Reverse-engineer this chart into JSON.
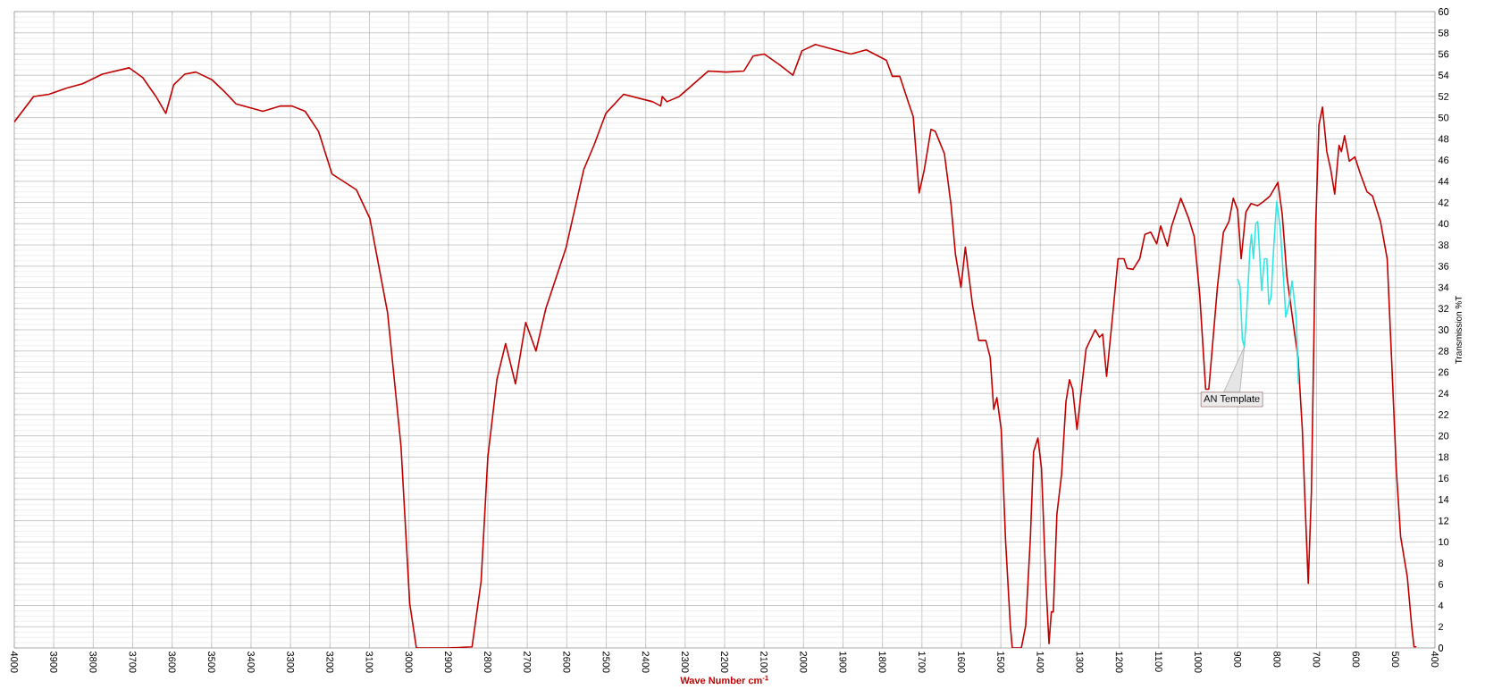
{
  "chart_data": {
    "type": "line",
    "xlabel": "Wave Number cm$^{-1}$",
    "ylabel": "Transmission %T",
    "xlim": [
      4000,
      400
    ],
    "ylim": [
      0,
      60
    ],
    "xticks": [
      4000,
      3900,
      3800,
      3700,
      3600,
      3500,
      3400,
      3300,
      3200,
      3100,
      3000,
      2900,
      2800,
      2700,
      2600,
      2500,
      2400,
      2300,
      2200,
      2100,
      2000,
      1900,
      1800,
      1700,
      1600,
      1500,
      1400,
      1300,
      1200,
      1100,
      1000,
      900,
      800,
      700,
      600,
      500,
      400
    ],
    "yticks": [
      0,
      2,
      4,
      6,
      8,
      10,
      12,
      14,
      16,
      18,
      20,
      22,
      24,
      26,
      28,
      30,
      32,
      34,
      36,
      38,
      40,
      42,
      44,
      46,
      48,
      50,
      52,
      54,
      56,
      58,
      60
    ],
    "grid": true,
    "series": [
      {
        "color": "#c00000",
        "x": [
          4000,
          3951,
          3912,
          3867,
          3827,
          3777,
          3709,
          3675,
          3641,
          3616,
          3596,
          3568,
          3540,
          3500,
          3466,
          3438,
          3370,
          3325,
          3297,
          3263,
          3229,
          3195,
          3133,
          3099,
          3054,
          3020,
          2998,
          2981,
          2940,
          2900,
          2840,
          2817,
          2800,
          2777,
          2755,
          2730,
          2704,
          2678,
          2653,
          2602,
          2557,
          2531,
          2501,
          2456,
          2382,
          2362,
          2358,
          2346,
          2315,
          2241,
          2196,
          2151,
          2128,
          2100,
          2061,
          2027,
          2004,
          1970,
          1920,
          1880,
          1841,
          1790,
          1775,
          1756,
          1733,
          1722,
          1707,
          1694,
          1677,
          1666,
          1643,
          1626,
          1615,
          1601,
          1590,
          1572,
          1556,
          1538,
          1527,
          1518,
          1510,
          1499,
          1488,
          1476,
          1471,
          1448,
          1437,
          1425,
          1417,
          1406,
          1397,
          1386,
          1378,
          1372,
          1367,
          1358,
          1346,
          1335,
          1326,
          1318,
          1307,
          1293,
          1284,
          1261,
          1250,
          1242,
          1232,
          1216,
          1203,
          1188,
          1180,
          1165,
          1148,
          1135,
          1120,
          1105,
          1095,
          1078,
          1067,
          1044,
          1024,
          1010,
          996,
          981,
          973,
          951,
          936,
          922,
          911,
          900,
          891,
          879,
          866,
          849,
          834,
          818,
          798,
          787,
          775,
          758,
          747,
          736,
          728,
          721,
          713,
          702,
          694,
          685,
          674,
          664,
          654,
          643,
          637,
          629,
          617,
          603,
          589,
          572,
          558,
          538,
          521,
          510,
          498,
          487,
          470,
          459,
          453,
          447
        ],
        "values": [
          49.6,
          52,
          52.2,
          52.8,
          53.2,
          54.1,
          54.7,
          53.8,
          52,
          50.4,
          53.1,
          54.1,
          54.3,
          53.6,
          52.4,
          51.3,
          50.6,
          51.1,
          51.1,
          50.6,
          48.7,
          44.7,
          43.2,
          40.5,
          31.6,
          19,
          4.2,
          0,
          0,
          0,
          0.1,
          6.3,
          18,
          25.3,
          28.7,
          24.9,
          30.7,
          28,
          32,
          37.7,
          45.1,
          47.4,
          50.4,
          52.2,
          51.5,
          51.1,
          52,
          51.5,
          52,
          54.4,
          54.3,
          54.4,
          55.8,
          56,
          55,
          54,
          56.3,
          56.9,
          56.4,
          56,
          56.4,
          55.4,
          53.9,
          53.9,
          51.3,
          50.1,
          42.9,
          45.1,
          48.9,
          48.7,
          46.6,
          41.7,
          37.1,
          34,
          37.8,
          32.4,
          29,
          29,
          27.4,
          22.5,
          23.6,
          20.6,
          10.1,
          2.1,
          0,
          0,
          2.1,
          10.5,
          18.5,
          19.8,
          16.9,
          6.3,
          0.4,
          3.4,
          3.4,
          12.6,
          16.4,
          23.2,
          25.3,
          24.4,
          20.6,
          25.3,
          28.2,
          30,
          29.3,
          29.6,
          25.6,
          31.6,
          36.7,
          36.7,
          35.8,
          35.7,
          36.7,
          39,
          39.2,
          38.1,
          39.8,
          37.9,
          39.8,
          42.4,
          40.5,
          38.8,
          33.3,
          24.4,
          24.4,
          34.1,
          39.2,
          40.2,
          42.4,
          41.3,
          36.7,
          41.1,
          41.9,
          41.7,
          42.1,
          42.6,
          43.9,
          40.9,
          35,
          30.3,
          27.4,
          20.6,
          12.6,
          6.1,
          14.7,
          40,
          49.3,
          51,
          46.8,
          45.1,
          42.8,
          47.4,
          46.8,
          48.3,
          45.9,
          46.3,
          44.7,
          43,
          42.6,
          40.2,
          36.7,
          27.4,
          16.9,
          10.5,
          6.7,
          2.1,
          0.1,
          0.1
        ]
      },
      {
        "color": "#33e6e6",
        "x": [
          900,
          894,
          888,
          883,
          877,
          869,
          865,
          860,
          854,
          849,
          839,
          832,
          826,
          821,
          815,
          809,
          801,
          792,
          784,
          778,
          770,
          762,
          755,
          751,
          746
        ],
        "values": [
          34.8,
          34.1,
          29.1,
          28.4,
          31.6,
          37.5,
          39,
          36.7,
          40,
          40.2,
          33.7,
          36.7,
          36.7,
          32.4,
          33.1,
          37.5,
          42.1,
          39.6,
          35,
          31.2,
          32.4,
          34.6,
          32.4,
          30.8,
          24.9
        ]
      }
    ],
    "annotations": [
      {
        "text": "AN Template",
        "x": 883,
        "y": 28.4
      }
    ]
  }
}
